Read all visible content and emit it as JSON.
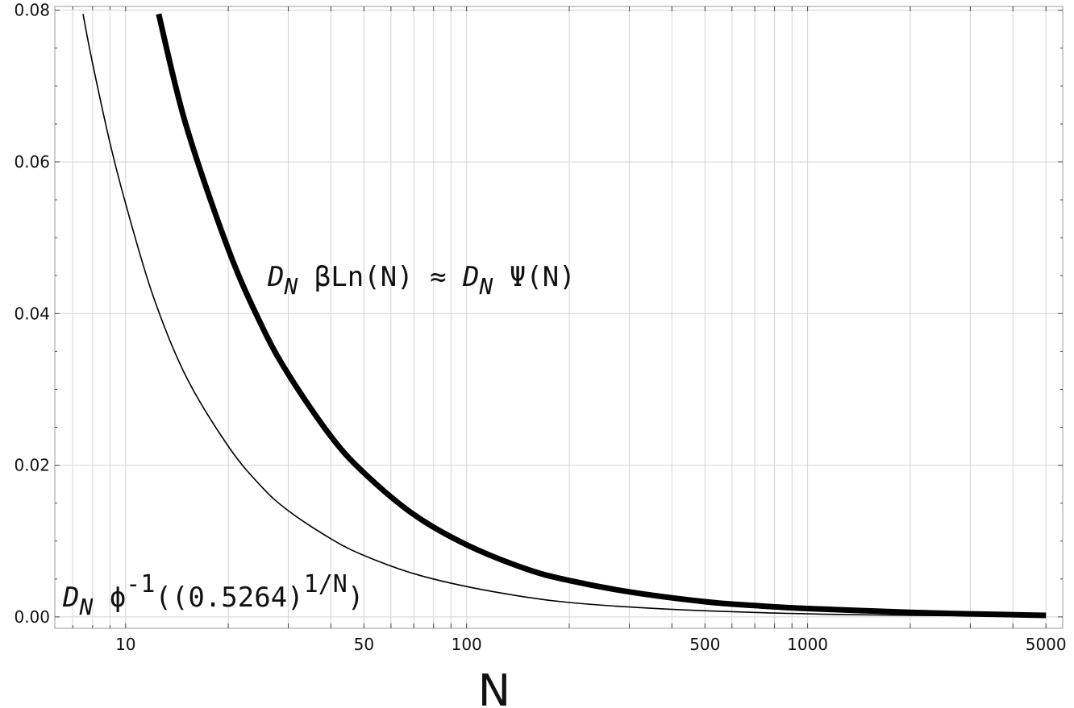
{
  "chart_data": {
    "type": "line",
    "xlabel": "N",
    "ylabel": "",
    "x_scale": "log",
    "xlim": [
      6.2,
      5600
    ],
    "ylim": [
      -0.0015,
      0.0805
    ],
    "grid": true,
    "x_ticks": [
      {
        "value": 10,
        "label": "10"
      },
      {
        "value": 50,
        "label": "50"
      },
      {
        "value": 100,
        "label": "100"
      },
      {
        "value": 500,
        "label": "500"
      },
      {
        "value": 1000,
        "label": "1000"
      },
      {
        "value": 5000,
        "label": "5000"
      }
    ],
    "y_ticks": [
      {
        "value": 0,
        "label": "0.00"
      },
      {
        "value": 0.02,
        "label": "0.02"
      },
      {
        "value": 0.04,
        "label": "0.04"
      },
      {
        "value": 0.06,
        "label": "0.06"
      },
      {
        "value": 0.08,
        "label": "0.08"
      }
    ],
    "series": [
      {
        "label_parts": [
          "D",
          "N",
          " βLn(N) ≈ ",
          "D",
          "N",
          " Ψ(N)"
        ],
        "stroke": "thick",
        "x": [
          12.5,
          15,
          20,
          25,
          30,
          40,
          50,
          70,
          100,
          150,
          200,
          300,
          500,
          700,
          1000,
          2000,
          3000,
          5000
        ],
        "y": [
          0.0795,
          0.065,
          0.0485,
          0.0385,
          0.032,
          0.0238,
          0.019,
          0.0135,
          0.0095,
          0.0063,
          0.0048,
          0.0033,
          0.002,
          0.0015,
          0.0011,
          0.0006,
          0.0004,
          0.0002
        ]
      },
      {
        "label_parts": [
          "D",
          "N",
          " ϕ",
          "-1",
          "((0.5264)",
          "1/N",
          ")"
        ],
        "stroke": "thin",
        "x": [
          7.5,
          8,
          9,
          10,
          12,
          15,
          20,
          25,
          30,
          40,
          50,
          70,
          100,
          150,
          200,
          300,
          500,
          1000,
          2000,
          5000
        ],
        "y": [
          0.0795,
          0.073,
          0.0625,
          0.0545,
          0.0425,
          0.0318,
          0.0225,
          0.0172,
          0.014,
          0.0103,
          0.0081,
          0.0057,
          0.004,
          0.0026,
          0.0019,
          0.0013,
          0.0008,
          0.0004,
          0.0002,
          0.0001
        ]
      }
    ]
  }
}
